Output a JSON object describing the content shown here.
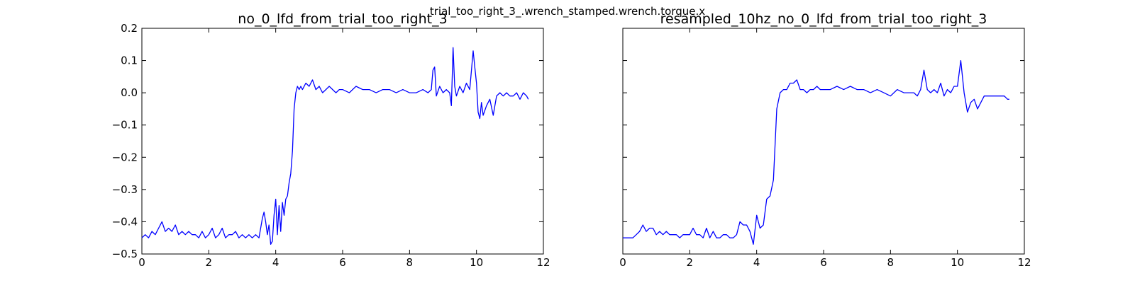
{
  "figure": {
    "suptitle": "trial_too_right_3_.wrench_stamped.wrench.torque.x",
    "line_color": "#0000ff"
  },
  "chart_data": [
    {
      "type": "line",
      "title": "no_0_lfd_from_trial_too_right_3",
      "xlabel": "",
      "ylabel": "",
      "xlim": [
        0,
        12
      ],
      "ylim": [
        -0.5,
        0.2
      ],
      "x_ticks": [
        0,
        2,
        4,
        6,
        8,
        10,
        12
      ],
      "y_ticks": [
        -0.5,
        -0.4,
        -0.3,
        -0.2,
        -0.1,
        0.0,
        0.1,
        0.2
      ],
      "x_tick_labels": [
        "0",
        "2",
        "4",
        "6",
        "8",
        "10",
        "12"
      ],
      "y_tick_labels": [
        "−0.5",
        "−0.4",
        "−0.3",
        "−0.2",
        "−0.1",
        "0.0",
        "0.1",
        "0.2"
      ],
      "grid": false,
      "series": [
        {
          "x": [
            0.0,
            0.1,
            0.2,
            0.3,
            0.4,
            0.5,
            0.6,
            0.7,
            0.8,
            0.9,
            1.0,
            1.1,
            1.2,
            1.3,
            1.4,
            1.5,
            1.6,
            1.7,
            1.8,
            1.9,
            2.0,
            2.1,
            2.2,
            2.3,
            2.4,
            2.5,
            2.6,
            2.7,
            2.8,
            2.9,
            3.0,
            3.1,
            3.2,
            3.3,
            3.4,
            3.5,
            3.6,
            3.65,
            3.7,
            3.75,
            3.8,
            3.85,
            3.9,
            3.95,
            4.0,
            4.05,
            4.1,
            4.15,
            4.2,
            4.25,
            4.3,
            4.35,
            4.4,
            4.45,
            4.5,
            4.55,
            4.6,
            4.65,
            4.7,
            4.75,
            4.8,
            4.9,
            5.0,
            5.1,
            5.2,
            5.3,
            5.4,
            5.5,
            5.6,
            5.7,
            5.8,
            5.9,
            6.0,
            6.2,
            6.4,
            6.6,
            6.8,
            7.0,
            7.2,
            7.4,
            7.6,
            7.8,
            8.0,
            8.2,
            8.4,
            8.55,
            8.65,
            8.7,
            8.75,
            8.8,
            8.9,
            9.0,
            9.1,
            9.2,
            9.25,
            9.3,
            9.35,
            9.4,
            9.5,
            9.6,
            9.7,
            9.8,
            9.9,
            9.95,
            10.0,
            10.05,
            10.1,
            10.15,
            10.2,
            10.3,
            10.4,
            10.5,
            10.6,
            10.7,
            10.8,
            10.9,
            11.0,
            11.1,
            11.2,
            11.3,
            11.4,
            11.5,
            11.55
          ],
          "y": [
            -0.45,
            -0.44,
            -0.45,
            -0.43,
            -0.44,
            -0.42,
            -0.4,
            -0.43,
            -0.42,
            -0.43,
            -0.41,
            -0.44,
            -0.43,
            -0.44,
            -0.43,
            -0.44,
            -0.44,
            -0.45,
            -0.43,
            -0.45,
            -0.44,
            -0.42,
            -0.45,
            -0.44,
            -0.42,
            -0.45,
            -0.44,
            -0.44,
            -0.43,
            -0.45,
            -0.44,
            -0.45,
            -0.44,
            -0.45,
            -0.44,
            -0.45,
            -0.39,
            -0.37,
            -0.4,
            -0.44,
            -0.41,
            -0.47,
            -0.46,
            -0.38,
            -0.33,
            -0.44,
            -0.35,
            -0.43,
            -0.34,
            -0.38,
            -0.33,
            -0.32,
            -0.28,
            -0.25,
            -0.18,
            -0.05,
            0.0,
            0.02,
            0.01,
            0.02,
            0.01,
            0.03,
            0.02,
            0.04,
            0.01,
            0.02,
            0.0,
            0.01,
            0.02,
            0.01,
            0.0,
            0.01,
            0.01,
            0.0,
            0.02,
            0.01,
            0.01,
            0.0,
            0.01,
            0.01,
            0.0,
            0.01,
            0.0,
            0.0,
            0.01,
            0.0,
            0.01,
            0.07,
            0.08,
            -0.01,
            0.02,
            0.0,
            0.01,
            0.0,
            -0.04,
            0.14,
            0.02,
            -0.01,
            0.02,
            0.0,
            0.03,
            0.01,
            0.13,
            0.08,
            0.03,
            -0.06,
            -0.08,
            -0.03,
            -0.07,
            -0.04,
            -0.02,
            -0.07,
            -0.01,
            0.0,
            -0.01,
            0.0,
            -0.01,
            -0.01,
            0.0,
            -0.02,
            0.0,
            -0.01,
            -0.02
          ]
        }
      ]
    },
    {
      "type": "line",
      "title": "resampled_10hz_no_0_lfd_from_trial_too_right_3",
      "xlabel": "",
      "ylabel": "",
      "xlim": [
        0,
        12
      ],
      "ylim": [
        -0.5,
        0.2
      ],
      "x_ticks": [
        0,
        2,
        4,
        6,
        8,
        10,
        12
      ],
      "y_ticks": [
        -0.5,
        -0.4,
        -0.3,
        -0.2,
        -0.1,
        0.0,
        0.1,
        0.2
      ],
      "x_tick_labels": [
        "0",
        "2",
        "4",
        "6",
        "8",
        "10",
        "12"
      ],
      "y_tick_labels": [],
      "grid": false,
      "series": [
        {
          "x": [
            0.0,
            0.1,
            0.2,
            0.3,
            0.4,
            0.5,
            0.6,
            0.7,
            0.8,
            0.9,
            1.0,
            1.1,
            1.2,
            1.3,
            1.4,
            1.5,
            1.6,
            1.7,
            1.8,
            1.9,
            2.0,
            2.1,
            2.2,
            2.3,
            2.4,
            2.5,
            2.6,
            2.7,
            2.8,
            2.9,
            3.0,
            3.1,
            3.2,
            3.3,
            3.4,
            3.5,
            3.6,
            3.7,
            3.8,
            3.9,
            4.0,
            4.1,
            4.2,
            4.3,
            4.4,
            4.5,
            4.6,
            4.7,
            4.8,
            4.9,
            5.0,
            5.1,
            5.2,
            5.3,
            5.4,
            5.5,
            5.6,
            5.7,
            5.8,
            5.9,
            6.0,
            6.2,
            6.4,
            6.6,
            6.8,
            7.0,
            7.2,
            7.4,
            7.6,
            7.8,
            8.0,
            8.2,
            8.4,
            8.6,
            8.7,
            8.8,
            8.9,
            9.0,
            9.1,
            9.2,
            9.3,
            9.4,
            9.5,
            9.6,
            9.7,
            9.8,
            9.9,
            10.0,
            10.1,
            10.2,
            10.3,
            10.4,
            10.5,
            10.6,
            10.7,
            10.8,
            10.9,
            11.0,
            11.1,
            11.2,
            11.3,
            11.4,
            11.5,
            11.55
          ],
          "y": [
            -0.45,
            -0.45,
            -0.45,
            -0.45,
            -0.44,
            -0.43,
            -0.41,
            -0.43,
            -0.42,
            -0.42,
            -0.44,
            -0.43,
            -0.44,
            -0.43,
            -0.44,
            -0.44,
            -0.44,
            -0.45,
            -0.44,
            -0.44,
            -0.44,
            -0.42,
            -0.44,
            -0.44,
            -0.45,
            -0.42,
            -0.45,
            -0.43,
            -0.45,
            -0.45,
            -0.44,
            -0.44,
            -0.45,
            -0.45,
            -0.44,
            -0.4,
            -0.41,
            -0.41,
            -0.43,
            -0.47,
            -0.38,
            -0.42,
            -0.41,
            -0.33,
            -0.32,
            -0.27,
            -0.05,
            0.0,
            0.01,
            0.01,
            0.03,
            0.03,
            0.04,
            0.01,
            0.01,
            0.0,
            0.01,
            0.01,
            0.02,
            0.01,
            0.01,
            0.01,
            0.02,
            0.01,
            0.02,
            0.01,
            0.01,
            0.0,
            0.01,
            0.0,
            -0.01,
            0.01,
            0.0,
            0.0,
            0.0,
            -0.01,
            0.01,
            0.07,
            0.01,
            0.0,
            0.01,
            0.0,
            0.03,
            -0.01,
            0.01,
            0.0,
            0.02,
            0.02,
            0.1,
            0.0,
            -0.06,
            -0.03,
            -0.02,
            -0.05,
            -0.03,
            -0.01,
            -0.01,
            -0.01,
            -0.01,
            -0.01,
            -0.01,
            -0.01,
            -0.02,
            -0.02
          ]
        }
      ]
    }
  ]
}
